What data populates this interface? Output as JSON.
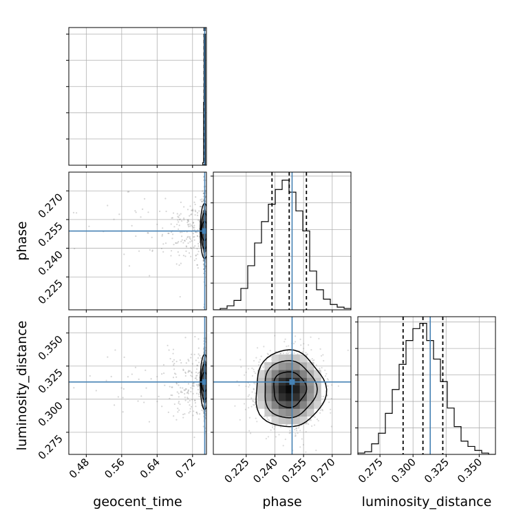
{
  "chart_data": {
    "type": "corner",
    "parameters": [
      "geocent_time",
      "phase",
      "luminosity_distance"
    ],
    "truths": {
      "geocent_time": 0.7475,
      "phase": 0.249,
      "luminosity_distance": 0.313
    },
    "truth_color": "#4682b4",
    "quantiles": {
      "geocent_time": [
        0.7462,
        0.7472,
        0.7482
      ],
      "phase": [
        0.2385,
        0.2475,
        0.2565
      ],
      "luminosity_distance": [
        0.2925,
        0.3075,
        0.3225
      ]
    },
    "axes": {
      "geocent_time": {
        "range": [
          0.4406,
          0.7514
        ],
        "ticks": [
          "0.48",
          "0.56",
          "0.64",
          "0.72"
        ]
      },
      "phase": {
        "range": [
          0.2078,
          0.2798
        ],
        "ticks": [
          "0.225",
          "0.240",
          "0.255",
          "0.270"
        ]
      },
      "luminosity_distance": {
        "range": [
          0.2583,
          0.3623
        ],
        "ticks": [
          "0.275",
          "0.300",
          "0.325",
          "0.350"
        ]
      }
    },
    "histograms": {
      "geocent_time": {
        "edges": [
          0.743,
          0.745,
          0.746,
          0.747,
          0.748,
          0.749,
          0.7514
        ],
        "counts": [
          2,
          48,
          100,
          100,
          100,
          0
        ]
      },
      "phase": {
        "edges": [
          0.2078,
          0.2114,
          0.215,
          0.2186,
          0.2222,
          0.2258,
          0.2294,
          0.233,
          0.2366,
          0.2402,
          0.2438,
          0.2474,
          0.251,
          0.2546,
          0.2582,
          0.2618,
          0.2654,
          0.269,
          0.2726,
          0.2762,
          0.2798
        ],
        "counts": [
          0,
          1,
          3,
          7,
          16,
          33,
          50,
          66,
          79,
          90,
          97,
          88,
          74,
          59,
          29,
          15,
          8,
          4,
          2,
          1
        ]
      },
      "luminosity_distance": {
        "edges": [
          0.2583,
          0.2635,
          0.2687,
          0.2739,
          0.2791,
          0.2843,
          0.2895,
          0.2947,
          0.2999,
          0.3051,
          0.3103,
          0.3155,
          0.3207,
          0.3259,
          0.3311,
          0.3363,
          0.3415,
          0.3467,
          0.3519,
          0.3571,
          0.3623
        ],
        "counts": [
          1,
          2,
          8,
          16,
          31,
          49,
          68,
          86,
          95,
          99,
          86,
          72,
          55,
          35,
          21,
          10,
          6,
          3,
          1,
          0
        ]
      }
    },
    "hist_ymax": {
      "geocent_time": 105,
      "phase": 103,
      "luminosity_distance": 104
    },
    "panel_labels": {
      "x": [
        "geocent_time",
        "phase",
        "luminosity_distance"
      ],
      "y": [
        "phase",
        "luminosity_distance"
      ]
    },
    "grid": true
  }
}
